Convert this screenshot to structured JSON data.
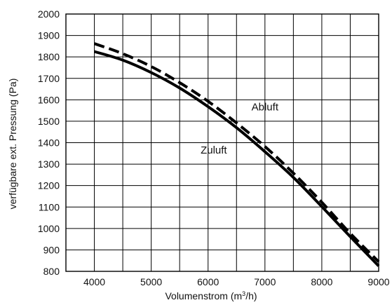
{
  "chart_data": {
    "type": "line",
    "title": "",
    "xlabel_parts": [
      "Volumenstrom (m",
      "3",
      "/h)"
    ],
    "ylabel": "verfügbare ext. Pressung (Pa)",
    "xlim": [
      3500,
      9000
    ],
    "ylim": [
      800,
      2000
    ],
    "x_ticks": [
      4000,
      5000,
      6000,
      7000,
      8000,
      9000
    ],
    "y_ticks": [
      800,
      900,
      1000,
      1100,
      1200,
      1300,
      1400,
      1500,
      1600,
      1700,
      1800,
      1900,
      2000
    ],
    "grid_x": [
      3500,
      4000,
      4500,
      5000,
      5500,
      6000,
      6500,
      7000,
      7500,
      8000,
      8500,
      9000
    ],
    "grid_y": [
      800,
      900,
      1000,
      1100,
      1200,
      1300,
      1400,
      1500,
      1600,
      1700,
      1800,
      1900,
      2000
    ],
    "grid": true,
    "series": [
      {
        "name": "Abluft",
        "style": "dashed",
        "x": [
          4000,
          4500,
          5000,
          5500,
          6000,
          6500,
          7000,
          7500,
          8000,
          8500,
          9000
        ],
        "y": [
          1862,
          1815,
          1755,
          1680,
          1593,
          1492,
          1382,
          1258,
          1122,
          977,
          845
        ]
      },
      {
        "name": "Zuluft",
        "style": "solid",
        "x": [
          4000,
          4500,
          5000,
          5500,
          6000,
          6500,
          7000,
          7500,
          8000,
          8500,
          9000
        ],
        "y": [
          1825,
          1785,
          1727,
          1655,
          1568,
          1470,
          1358,
          1238,
          1102,
          962,
          825
        ]
      }
    ],
    "annotations": [
      {
        "text": "Abluft",
        "x": 7000,
        "y": 1550
      },
      {
        "text": "Zuluft",
        "x": 6100,
        "y": 1350
      }
    ],
    "line_color": "#000000",
    "grid_color": "#000000",
    "background": "#ffffff"
  }
}
